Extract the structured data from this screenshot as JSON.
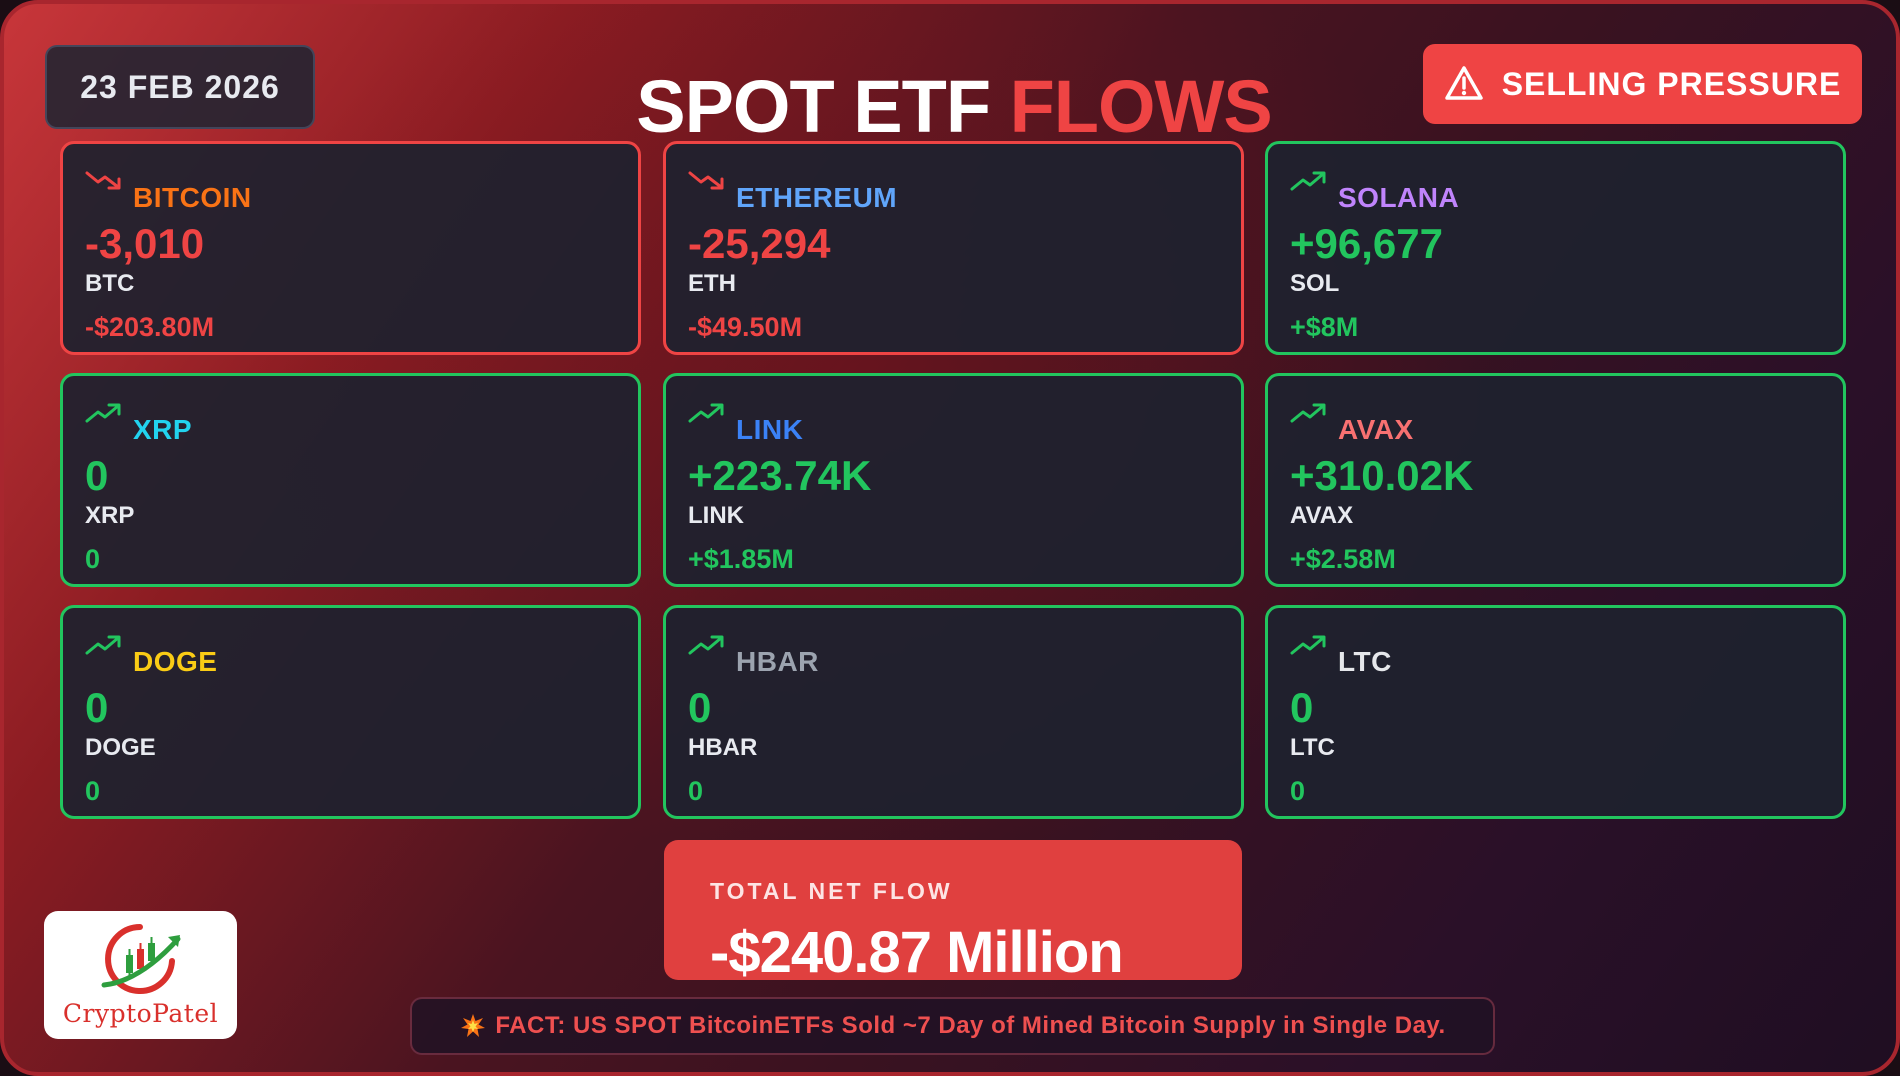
{
  "date": "23 FEB 2026",
  "title": {
    "part1": "SPOT ETF",
    "part2": "FLOWS"
  },
  "alert": {
    "label": "SELLING PRESSURE",
    "icon": "warning-triangle-icon"
  },
  "cards": [
    {
      "name": "BITCOIN",
      "name_color": "#f97316",
      "amount": "-3,010",
      "unit": "BTC",
      "usd": "-$203.80M",
      "trend": "down"
    },
    {
      "name": "ETHEREUM",
      "name_color": "#60a5fa",
      "amount": "-25,294",
      "unit": "ETH",
      "usd": "-$49.50M",
      "trend": "down"
    },
    {
      "name": "SOLANA",
      "name_color": "#c084fc",
      "amount": "+96,677",
      "unit": "SOL",
      "usd": "+$8M",
      "trend": "up"
    },
    {
      "name": "XRP",
      "name_color": "#22d3ee",
      "amount": "0",
      "unit": "XRP",
      "usd": "0",
      "trend": "up"
    },
    {
      "name": "LINK",
      "name_color": "#3b82f6",
      "amount": "+223.74K",
      "unit": "LINK",
      "usd": "+$1.85M",
      "trend": "up"
    },
    {
      "name": "AVAX",
      "name_color": "#f87171",
      "amount": "+310.02K",
      "unit": "AVAX",
      "usd": "+$2.58M",
      "trend": "up"
    },
    {
      "name": "DOGE",
      "name_color": "#facc15",
      "amount": "0",
      "unit": "DOGE",
      "usd": "0",
      "trend": "up"
    },
    {
      "name": "HBAR",
      "name_color": "#9ca3af",
      "amount": "0",
      "unit": "HBAR",
      "usd": "0",
      "trend": "up"
    },
    {
      "name": "LTC",
      "name_color": "#e5e7eb",
      "amount": "0",
      "unit": "LTC",
      "usd": "0",
      "trend": "up"
    }
  ],
  "total": {
    "label": "TOTAL NET FLOW",
    "value": "-$240.87 Million"
  },
  "logo": {
    "text": "CryptoPatel"
  },
  "fact": {
    "icon": "explosion-icon",
    "text": "FACT: US SPOT BitcoinETFs  Sold ~7 Day of Mined Bitcoin Supply in Single Day."
  },
  "colors": {
    "positive": "#22c55e",
    "negative": "#ef4444",
    "alert_bg": "#ef4444"
  }
}
